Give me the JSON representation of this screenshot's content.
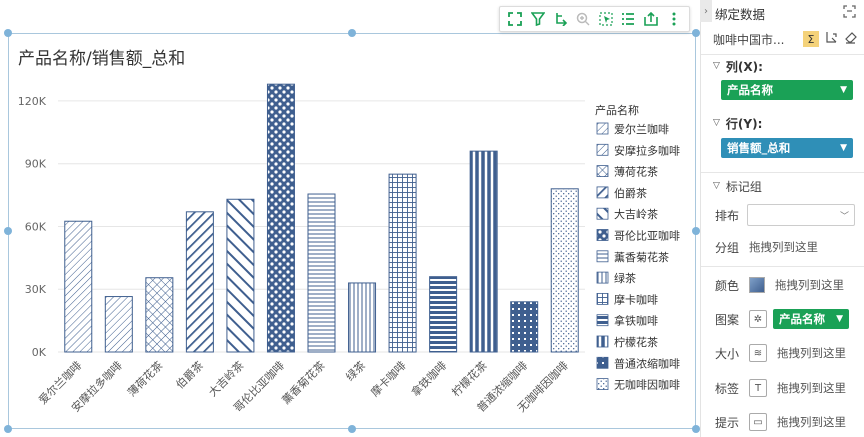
{
  "chart_data": {
    "type": "bar",
    "title": "产品名称/销售额_总和",
    "xlabel": "",
    "ylabel": "",
    "ylim": [
      0,
      130000
    ],
    "yticks": [
      "0K",
      "30K",
      "60K",
      "90K",
      "120K"
    ],
    "yticks_values": [
      0,
      30000,
      60000,
      90000,
      120000
    ],
    "grid": true,
    "legend_position": "right",
    "legend_title": "产品名称",
    "categories": [
      "爱尔兰咖啡",
      "安摩拉多咖啡",
      "薄荷花茶",
      "伯爵茶",
      "大吉岭茶",
      "哥伦比亚咖啡",
      "薰香菊花茶",
      "绿茶",
      "摩卡咖啡",
      "拿铁咖啡",
      "柠檬花茶",
      "普通浓缩咖啡",
      "无咖啡因咖啡"
    ],
    "values": [
      62500,
      26500,
      35500,
      67000,
      73000,
      128000,
      75500,
      33000,
      85000,
      36000,
      96000,
      24000,
      78000
    ],
    "patterns": [
      "diag-thin",
      "diag-thin",
      "cross",
      "diag-thick",
      "diag-wide",
      "dots-diamond",
      "horiz",
      "vert-thin",
      "grid",
      "horiz-thick",
      "vert-thick",
      "dots",
      "dots-sparse"
    ]
  },
  "toolbar": {
    "icons": [
      "expand-icon",
      "filter-icon",
      "drill-icon",
      "zoom-icon",
      "select-icon",
      "list-icon",
      "export-icon",
      "more-icon"
    ]
  },
  "panel": {
    "header": "绑定数据",
    "dataset": "咖啡中国市...",
    "column_label": "列(X):",
    "column_field": "产品名称",
    "row_label": "行(Y):",
    "row_field": "销售额_总和",
    "marks_label": "标记组",
    "layout_label": "排布",
    "group_label": "分组",
    "group_placeholder": "拖拽列到这里",
    "color_label": "颜色",
    "color_placeholder": "拖拽列到这里",
    "pattern_label": "图案",
    "pattern_field": "产品名称",
    "size_label": "大小",
    "size_placeholder": "拖拽列到这里",
    "tag_label": "标签",
    "tag_placeholder": "拖拽列到这里",
    "tooltip_label": "提示",
    "tooltip_placeholder": "拖拽列到这里"
  },
  "colors": {
    "bar_stroke": "#3f5f8f",
    "accent_green": "#1aa156",
    "accent_blue": "#2f8fb7"
  }
}
